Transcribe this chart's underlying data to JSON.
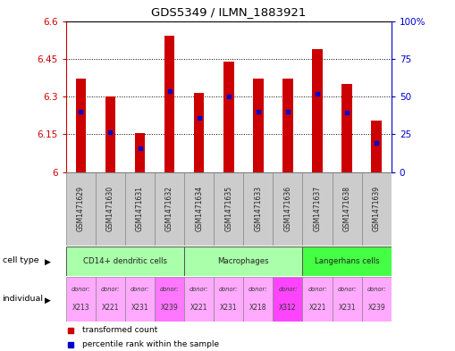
{
  "title": "GDS5349 / ILMN_1883921",
  "samples": [
    "GSM1471629",
    "GSM1471630",
    "GSM1471631",
    "GSM1471632",
    "GSM1471634",
    "GSM1471635",
    "GSM1471633",
    "GSM1471636",
    "GSM1471637",
    "GSM1471638",
    "GSM1471639"
  ],
  "transformed_counts": [
    6.37,
    6.3,
    6.155,
    6.54,
    6.315,
    6.44,
    6.37,
    6.37,
    6.49,
    6.35,
    6.205
  ],
  "percentile_values": [
    6.24,
    6.16,
    6.095,
    6.32,
    6.215,
    6.3,
    6.24,
    6.24,
    6.31,
    6.235,
    6.115
  ],
  "ymin": 6.0,
  "ymax": 6.6,
  "yticks": [
    6.0,
    6.15,
    6.3,
    6.45,
    6.6
  ],
  "ytick_labels": [
    "6",
    "6.15",
    "6.3",
    "6.45",
    "6.6"
  ],
  "right_yticks": [
    0,
    25,
    50,
    75,
    100
  ],
  "right_ytick_labels": [
    "0",
    "25",
    "50",
    "75",
    "100%"
  ],
  "bar_color": "#cc0000",
  "percentile_color": "#0000cc",
  "grid_color": "#000000",
  "cell_type_groups": [
    {
      "label": "CD14+ dendritic cells",
      "start": 0,
      "end": 3,
      "color": "#aaffaa"
    },
    {
      "label": "Macrophages",
      "start": 4,
      "end": 7,
      "color": "#aaffaa"
    },
    {
      "label": "Langerhans cells",
      "start": 8,
      "end": 10,
      "color": "#44ff44"
    }
  ],
  "individuals": [
    {
      "donor": "X213",
      "color": "#ffaaff"
    },
    {
      "donor": "X221",
      "color": "#ffaaff"
    },
    {
      "donor": "X231",
      "color": "#ffaaff"
    },
    {
      "donor": "X239",
      "color": "#ff77ff"
    },
    {
      "donor": "X221",
      "color": "#ffaaff"
    },
    {
      "donor": "X231",
      "color": "#ffaaff"
    },
    {
      "donor": "X218",
      "color": "#ffaaff"
    },
    {
      "donor": "X312",
      "color": "#ff44ff"
    },
    {
      "donor": "X221",
      "color": "#ffaaff"
    },
    {
      "donor": "X231",
      "color": "#ffaaff"
    },
    {
      "donor": "X239",
      "color": "#ffaaff"
    }
  ],
  "bar_width": 0.35,
  "tick_label_color_left": "#cc0000",
  "tick_label_color_right": "#0000cc",
  "bg_color": "#ffffff",
  "sample_area_color": "#cccccc",
  "legend_red": "transformed count",
  "legend_blue": "percentile rank within the sample"
}
